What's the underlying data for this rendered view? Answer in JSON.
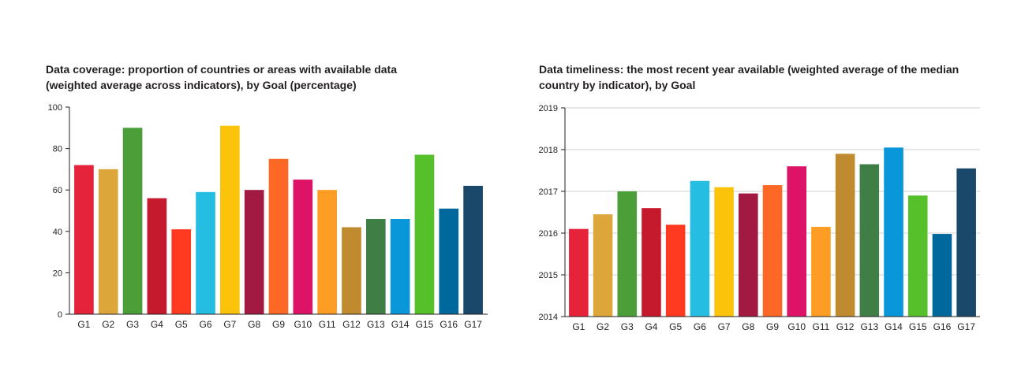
{
  "chart_data": [
    {
      "type": "bar",
      "title_line1": "Data coverage: proportion of countries or areas with available data",
      "title_line2": "(weighted average across indicators), by Goal (percentage)",
      "xlabel": "",
      "ylabel": "",
      "ylim": [
        0,
        100
      ],
      "yticks": [
        0,
        20,
        40,
        60,
        80,
        100
      ],
      "grid": false,
      "categories": [
        "G1",
        "G2",
        "G3",
        "G4",
        "G5",
        "G6",
        "G7",
        "G8",
        "G9",
        "G10",
        "G11",
        "G12",
        "G13",
        "G14",
        "G15",
        "G16",
        "G17"
      ],
      "values": [
        72,
        70,
        90,
        56,
        41,
        59,
        91,
        60,
        75,
        65,
        60,
        42,
        46,
        46,
        77,
        51,
        62
      ],
      "colors": [
        "#e5243b",
        "#dda63a",
        "#4c9f38",
        "#c5192d",
        "#ff3a21",
        "#26bde2",
        "#fcc30b",
        "#a21942",
        "#fd6925",
        "#dd1367",
        "#fd9d24",
        "#bf8b2e",
        "#3f7e44",
        "#0a97d9",
        "#56c02b",
        "#00689d",
        "#19486a"
      ]
    },
    {
      "type": "bar",
      "title_line1": "Data timeliness: the most recent year available (weighted average of the median",
      "title_line2": "country by indicator), by Goal",
      "xlabel": "",
      "ylabel": "",
      "ylim": [
        2014,
        2019
      ],
      "yticks": [
        2014,
        2015,
        2016,
        2017,
        2018,
        2019
      ],
      "grid": true,
      "categories": [
        "G1",
        "G2",
        "G3",
        "G4",
        "G5",
        "G6",
        "G7",
        "G8",
        "G9",
        "G10",
        "G11",
        "G12",
        "G13",
        "G14",
        "G15",
        "G16",
        "G17"
      ],
      "values": [
        2016.1,
        2016.45,
        2017.0,
        2016.6,
        2016.2,
        2017.25,
        2017.1,
        2016.95,
        2017.15,
        2017.6,
        2016.15,
        2017.9,
        2017.65,
        2018.05,
        2016.9,
        2015.98,
        2017.55
      ],
      "colors": [
        "#e5243b",
        "#dda63a",
        "#4c9f38",
        "#c5192d",
        "#ff3a21",
        "#26bde2",
        "#fcc30b",
        "#a21942",
        "#fd6925",
        "#dd1367",
        "#fd9d24",
        "#bf8b2e",
        "#3f7e44",
        "#0a97d9",
        "#56c02b",
        "#00689d",
        "#19486a"
      ]
    }
  ]
}
